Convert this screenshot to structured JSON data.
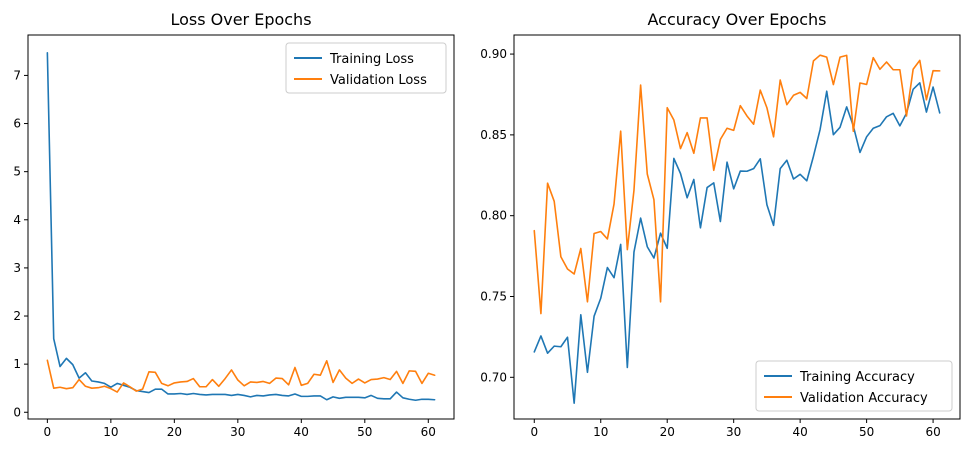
{
  "chart_data": [
    {
      "type": "line",
      "title": "Loss Over Epochs",
      "xlabel": "",
      "ylabel": "",
      "xlim": [
        -3.05,
        64.05
      ],
      "ylim": [
        -0.14,
        7.84
      ],
      "x_ticks": [
        0,
        10,
        20,
        30,
        40,
        50,
        60
      ],
      "y_ticks": [
        0,
        1,
        2,
        3,
        4,
        5,
        6,
        7
      ],
      "grid": false,
      "legend_position": "upper-right",
      "x": [
        0,
        1,
        2,
        3,
        4,
        5,
        6,
        7,
        8,
        9,
        10,
        11,
        12,
        13,
        14,
        15,
        16,
        17,
        18,
        19,
        20,
        21,
        22,
        23,
        24,
        25,
        26,
        27,
        28,
        29,
        30,
        31,
        32,
        33,
        34,
        35,
        36,
        37,
        38,
        39,
        40,
        41,
        42,
        43,
        44,
        45,
        46,
        47,
        48,
        49,
        50,
        51,
        52,
        53,
        54,
        55,
        56,
        57,
        58,
        59,
        60,
        61
      ],
      "series": [
        {
          "name": "Training Loss",
          "color": "#1f77b4",
          "values": [
            7.47,
            1.53,
            0.95,
            1.12,
            0.99,
            0.71,
            0.82,
            0.65,
            0.63,
            0.6,
            0.52,
            0.6,
            0.56,
            0.52,
            0.45,
            0.43,
            0.41,
            0.48,
            0.48,
            0.38,
            0.38,
            0.39,
            0.37,
            0.39,
            0.37,
            0.36,
            0.37,
            0.37,
            0.37,
            0.35,
            0.37,
            0.35,
            0.32,
            0.35,
            0.34,
            0.36,
            0.37,
            0.35,
            0.34,
            0.38,
            0.33,
            0.33,
            0.34,
            0.34,
            0.26,
            0.32,
            0.29,
            0.31,
            0.31,
            0.31,
            0.3,
            0.35,
            0.29,
            0.28,
            0.28,
            0.42,
            0.3,
            0.27,
            0.25,
            0.27,
            0.27,
            0.26
          ]
        },
        {
          "name": "Validation Loss",
          "color": "#ff7f0e",
          "values": [
            1.08,
            0.5,
            0.52,
            0.49,
            0.51,
            0.68,
            0.54,
            0.5,
            0.51,
            0.54,
            0.49,
            0.42,
            0.61,
            0.53,
            0.44,
            0.48,
            0.84,
            0.83,
            0.6,
            0.55,
            0.61,
            0.63,
            0.64,
            0.7,
            0.53,
            0.53,
            0.68,
            0.54,
            0.7,
            0.88,
            0.67,
            0.55,
            0.63,
            0.62,
            0.64,
            0.6,
            0.71,
            0.7,
            0.57,
            0.93,
            0.56,
            0.6,
            0.79,
            0.77,
            1.07,
            0.62,
            0.88,
            0.71,
            0.6,
            0.69,
            0.61,
            0.68,
            0.69,
            0.72,
            0.68,
            0.85,
            0.6,
            0.86,
            0.85,
            0.6,
            0.81,
            0.77
          ]
        }
      ]
    },
    {
      "type": "line",
      "title": "Accuracy Over Epochs",
      "xlabel": "",
      "ylabel": "",
      "xlim": [
        -3.05,
        64.05
      ],
      "ylim": [
        0.6742,
        0.9118
      ],
      "x_ticks": [
        0,
        10,
        20,
        30,
        40,
        50,
        60
      ],
      "y_ticks": [
        0.7,
        0.75,
        0.8,
        0.85,
        0.9
      ],
      "y_tick_labels": [
        "0.70",
        "0.75",
        "0.80",
        "0.85",
        "0.90"
      ],
      "grid": false,
      "legend_position": "lower-right",
      "x": [
        0,
        1,
        2,
        3,
        4,
        5,
        6,
        7,
        8,
        9,
        10,
        11,
        12,
        13,
        14,
        15,
        16,
        17,
        18,
        19,
        20,
        21,
        22,
        23,
        24,
        25,
        26,
        27,
        28,
        29,
        30,
        31,
        32,
        33,
        34,
        35,
        36,
        37,
        38,
        39,
        40,
        41,
        42,
        43,
        44,
        45,
        46,
        47,
        48,
        49,
        50,
        51,
        52,
        53,
        54,
        55,
        56,
        57,
        58,
        59,
        60,
        61
      ],
      "series": [
        {
          "name": "Training Accuracy",
          "color": "#1f77b4",
          "values": [
            0.7157,
            0.7256,
            0.7149,
            0.7193,
            0.7189,
            0.7248,
            0.684,
            0.7387,
            0.7031,
            0.7378,
            0.7489,
            0.7679,
            0.7616,
            0.7822,
            0.7061,
            0.7775,
            0.7985,
            0.7808,
            0.7738,
            0.7892,
            0.7798,
            0.8354,
            0.8261,
            0.8111,
            0.8224,
            0.7925,
            0.8174,
            0.8203,
            0.7964,
            0.8331,
            0.8166,
            0.8276,
            0.8275,
            0.8291,
            0.8352,
            0.8068,
            0.794,
            0.8291,
            0.8343,
            0.8227,
            0.8256,
            0.8216,
            0.8367,
            0.8533,
            0.877,
            0.8501,
            0.8547,
            0.8673,
            0.8555,
            0.8391,
            0.8488,
            0.8541,
            0.8557,
            0.8612,
            0.8633,
            0.8556,
            0.8634,
            0.8782,
            0.8822,
            0.8641,
            0.8796,
            0.8636
          ]
        },
        {
          "name": "Validation Accuracy",
          "color": "#ff7f0e",
          "values": [
            0.7907,
            0.7394,
            0.8201,
            0.8089,
            0.7746,
            0.767,
            0.7639,
            0.7797,
            0.7467,
            0.789,
            0.7902,
            0.7856,
            0.8072,
            0.8523,
            0.779,
            0.8157,
            0.8808,
            0.8258,
            0.8099,
            0.7467,
            0.8668,
            0.8592,
            0.8415,
            0.8514,
            0.8386,
            0.8605,
            0.8605,
            0.8281,
            0.8472,
            0.8541,
            0.8528,
            0.8681,
            0.8617,
            0.8566,
            0.8777,
            0.8668,
            0.8488,
            0.8839,
            0.8687,
            0.8745,
            0.8763,
            0.8725,
            0.8958,
            0.8993,
            0.8981,
            0.8811,
            0.8981,
            0.8992,
            0.8522,
            0.8821,
            0.8812,
            0.8978,
            0.8906,
            0.8951,
            0.8903,
            0.8903,
            0.8617,
            0.8906,
            0.8961,
            0.8717,
            0.8897,
            0.8896
          ]
        }
      ]
    }
  ]
}
